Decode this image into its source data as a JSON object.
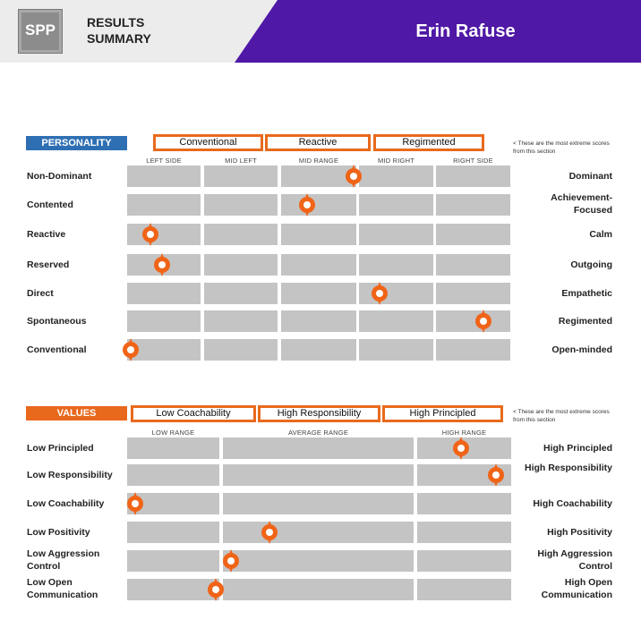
{
  "header": {
    "logo_text": "SPP",
    "title_line1": "RESULTS",
    "title_line2": "SUMMARY",
    "person_name": "Erin Rafuse",
    "accent_color": "#4f18a6"
  },
  "personality": {
    "label": "PERSONALITY",
    "label_color": "#2e6fb3",
    "extremes": [
      "Conventional",
      "Reactive",
      "Regimented"
    ],
    "note": "< These are the most extreme scores from this section",
    "columns": [
      "LEFT SIDE",
      "MID LEFT",
      "MID RANGE",
      "MID RIGHT",
      "RIGHT SIDE"
    ],
    "rows": [
      {
        "left": "Non-Dominant",
        "right": "Dominant",
        "score": 0.59
      },
      {
        "left": "Contented",
        "right": "Achievement-Focused",
        "score": 0.47
      },
      {
        "left": "Reactive",
        "right": "Calm",
        "score": 0.06
      },
      {
        "left": "Reserved",
        "right": "Outgoing",
        "score": 0.09
      },
      {
        "left": "Direct",
        "right": "Empathetic",
        "score": 0.66
      },
      {
        "left": "Spontaneous",
        "right": "Regimented",
        "score": 0.93
      },
      {
        "left": "Conventional",
        "right": "Open-minded",
        "score": 0.01
      }
    ]
  },
  "values": {
    "label": "VALUES",
    "label_color": "#e8681c",
    "extremes": [
      "Low Coachability",
      "High Responsibility",
      "High Principled"
    ],
    "note": "< These are the most extreme scores from this section",
    "columns": [
      "LOW RANGE",
      "AVERAGE RANGE",
      "HIGH RANGE"
    ],
    "rows": [
      {
        "left": "Low Principled",
        "right": "High Principled",
        "score": 0.87
      },
      {
        "left": "Low Responsibility",
        "right": "High Responsibility",
        "score": 0.96
      },
      {
        "left": "Low Coachability",
        "right": "High Coachability",
        "score": 0.02
      },
      {
        "left": "Low Positivity",
        "right": "High Positivity",
        "score": 0.37
      },
      {
        "left": "Low Aggression Control",
        "right": "High Aggression Control",
        "score": 0.27
      },
      {
        "left": "Low Open Communication",
        "right": "High Open Communication",
        "score": 0.23
      }
    ]
  },
  "marker_color": "#f06418"
}
